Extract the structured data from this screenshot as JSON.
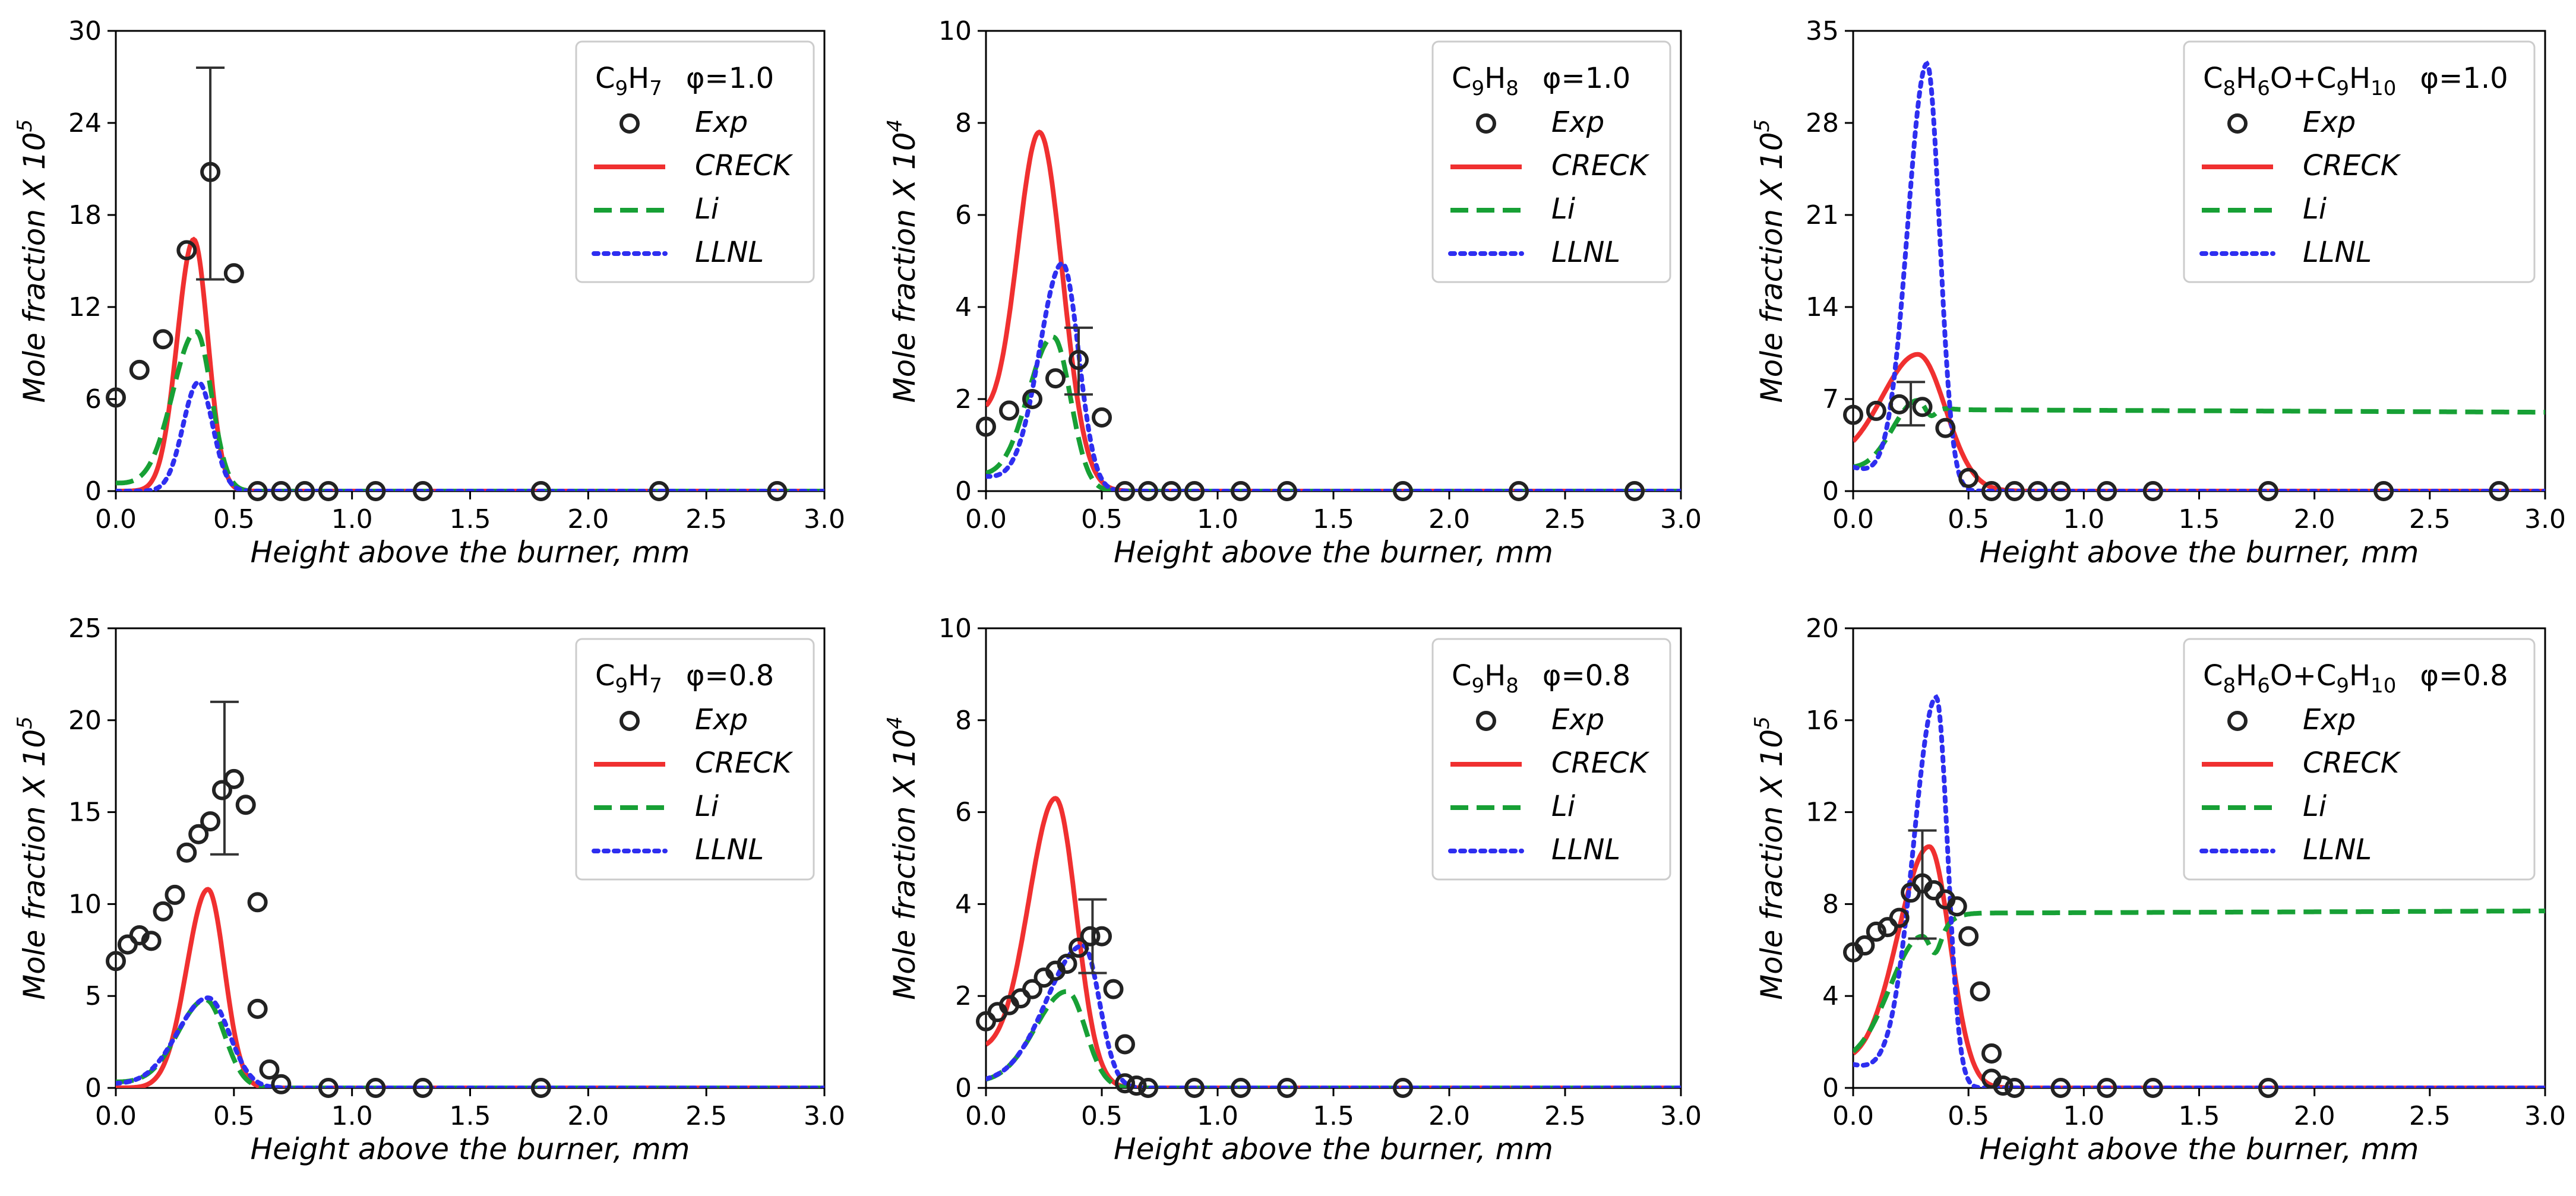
{
  "chart_data": [
    {
      "type": "line",
      "title": "C9H7 φ=1.0",
      "legend_title": {
        "base": [
          [
            "C",
            ""
          ],
          [
            "9",
            "sub"
          ],
          [
            "H",
            ""
          ],
          [
            "7",
            "sub"
          ]
        ],
        "phi": "φ=1.0"
      },
      "xlabel": "Height above the burner, mm",
      "ylabel": "Mole fraction X 10",
      "ylabel_exp": "5",
      "xlim": [
        0,
        3.0
      ],
      "ylim": [
        0,
        30
      ],
      "xticks": [
        "0.0",
        "0.5",
        "1.0",
        "1.5",
        "2.0",
        "2.5",
        "3.0"
      ],
      "yticks": [
        "0",
        "6",
        "12",
        "18",
        "24",
        "30"
      ],
      "legend_position": "top-right",
      "legend_labels": [
        "Exp",
        "CRECK",
        "Li",
        "LLNL"
      ],
      "exp": {
        "x": [
          0.0,
          0.1,
          0.2,
          0.3,
          0.4,
          0.5,
          0.6,
          0.7,
          0.8,
          0.9,
          1.1,
          1.3,
          1.8,
          2.3,
          2.8
        ],
        "y": [
          6.1,
          7.9,
          9.9,
          15.7,
          20.8,
          14.2,
          0,
          0,
          0,
          0,
          0,
          0,
          0,
          0,
          0
        ]
      },
      "errorbar": {
        "x": 0.4,
        "low": 13.8,
        "high": 27.6
      },
      "series": [
        {
          "name": "CRECK",
          "peak_x": 0.33,
          "peak": 16.4,
          "left_width": 0.07,
          "right_width": 0.06,
          "base0": 0.0
        },
        {
          "name": "Li",
          "peak_x": 0.34,
          "peak": 10.4,
          "left_width": 0.1,
          "right_width": 0.065,
          "base0": 0.5
        },
        {
          "name": "LLNL",
          "peak_x": 0.35,
          "peak": 7.1,
          "left_width": 0.065,
          "right_width": 0.06,
          "base0": 0.0
        }
      ]
    },
    {
      "type": "line",
      "title": "C9H8 φ=1.0",
      "legend_title": {
        "base": [
          [
            "C",
            ""
          ],
          [
            "9",
            "sub"
          ],
          [
            "H",
            ""
          ],
          [
            "8",
            "sub"
          ]
        ],
        "phi": "φ=1.0"
      },
      "xlabel": "Height above the burner, mm",
      "ylabel": "Mole fraction X 10",
      "ylabel_exp": "4",
      "xlim": [
        0,
        3.0
      ],
      "ylim": [
        0,
        10
      ],
      "xticks": [
        "0.0",
        "0.5",
        "1.0",
        "1.5",
        "2.0",
        "2.5",
        "3.0"
      ],
      "yticks": [
        "0",
        "2",
        "4",
        "6",
        "8",
        "10"
      ],
      "legend_position": "top-right",
      "legend_labels": [
        "Exp",
        "CRECK",
        "Li",
        "LLNL"
      ],
      "exp": {
        "x": [
          0.0,
          0.1,
          0.2,
          0.3,
          0.4,
          0.5,
          0.6,
          0.7,
          0.8,
          0.9,
          1.1,
          1.3,
          1.8,
          2.3,
          2.8
        ],
        "y": [
          1.4,
          1.75,
          2.0,
          2.45,
          2.85,
          1.6,
          0,
          0,
          0,
          0,
          0,
          0,
          0,
          0,
          0
        ]
      },
      "errorbar": {
        "x": 0.4,
        "low": 2.1,
        "high": 3.55
      },
      "series": [
        {
          "name": "CRECK",
          "peak_x": 0.23,
          "peak": 7.8,
          "left_width": 0.1,
          "right_width": 0.1,
          "base0": 1.4
        },
        {
          "name": "Li",
          "peak_x": 0.29,
          "peak": 3.35,
          "left_width": 0.11,
          "right_width": 0.075,
          "base0": 0.3
        },
        {
          "name": "LLNL",
          "peak_x": 0.33,
          "peak": 4.95,
          "left_width": 0.1,
          "right_width": 0.07,
          "base0": 0.3
        }
      ]
    },
    {
      "type": "line",
      "title": "C8H6O+C9H10 φ=1.0",
      "legend_title": {
        "base": [
          [
            "C",
            ""
          ],
          [
            "8",
            "sub"
          ],
          [
            "H",
            ""
          ],
          [
            "6",
            "sub"
          ],
          [
            "O+C",
            ""
          ],
          [
            "9",
            "sub"
          ],
          [
            "H",
            ""
          ],
          [
            "10",
            "sub"
          ]
        ],
        "phi": "φ=1.0"
      },
      "xlabel": "Height above the burner, mm",
      "ylabel": "Mole fraction X 10",
      "ylabel_exp": "5",
      "xlim": [
        0,
        3.0
      ],
      "ylim": [
        0,
        35
      ],
      "xticks": [
        "0.0",
        "0.5",
        "1.0",
        "1.5",
        "2.0",
        "2.5",
        "3.0"
      ],
      "yticks": [
        "0",
        "7",
        "14",
        "21",
        "28",
        "35"
      ],
      "legend_position": "top-right",
      "legend_labels": [
        "Exp",
        "CRECK",
        "Li",
        "LLNL"
      ],
      "exp": {
        "x": [
          0.0,
          0.1,
          0.2,
          0.3,
          0.4,
          0.5,
          0.6,
          0.7,
          0.8,
          0.9,
          1.1,
          1.3,
          1.8,
          2.3,
          2.8
        ],
        "y": [
          5.8,
          6.1,
          6.6,
          6.4,
          4.8,
          1.0,
          0,
          0,
          0,
          0,
          0,
          0,
          0,
          0,
          0
        ]
      },
      "errorbar": {
        "x": 0.25,
        "low": 5.0,
        "high": 8.3
      },
      "series": [
        {
          "name": "CRECK",
          "peak_x": 0.28,
          "peak": 10.4,
          "left_width": 0.17,
          "right_width": 0.12,
          "base0": 1.5
        },
        {
          "name": "Li",
          "peak_x": 0.28,
          "peak": 6.9,
          "left_width": 0.12,
          "right_width": 0.07,
          "base0": 1.5,
          "plateau_start": 6.2,
          "plateau_end": 6.0
        },
        {
          "name": "LLNL",
          "peak_x": 0.32,
          "peak": 32.5,
          "left_width": 0.085,
          "right_width": 0.055,
          "base0": 1.8
        }
      ]
    },
    {
      "type": "line",
      "title": "C9H7 φ=0.8",
      "legend_title": {
        "base": [
          [
            "C",
            ""
          ],
          [
            "9",
            "sub"
          ],
          [
            "H",
            ""
          ],
          [
            "7",
            "sub"
          ]
        ],
        "phi": "φ=0.8"
      },
      "xlabel": "Height above the burner, mm",
      "ylabel": "Mole fraction X 10",
      "ylabel_exp": "5",
      "xlim": [
        0,
        3.0
      ],
      "ylim": [
        0,
        25
      ],
      "xticks": [
        "0.0",
        "0.5",
        "1.0",
        "1.5",
        "2.0",
        "2.5",
        "3.0"
      ],
      "yticks": [
        "0",
        "5",
        "10",
        "15",
        "20",
        "25"
      ],
      "legend_position": "top-right",
      "legend_labels": [
        "Exp",
        "CRECK",
        "Li",
        "LLNL"
      ],
      "exp": {
        "x": [
          0.0,
          0.05,
          0.1,
          0.15,
          0.2,
          0.25,
          0.3,
          0.35,
          0.4,
          0.45,
          0.5,
          0.55,
          0.6,
          0.6,
          0.65,
          0.7,
          0.9,
          1.1,
          1.3,
          1.8
        ],
        "y": [
          6.9,
          7.8,
          8.3,
          8.0,
          9.6,
          10.5,
          12.8,
          13.8,
          14.5,
          16.2,
          16.8,
          15.4,
          10.1,
          4.3,
          1.0,
          0.2,
          0,
          0,
          0,
          0
        ]
      },
      "errorbar": {
        "x": 0.46,
        "low": 12.7,
        "high": 21.0
      },
      "series": [
        {
          "name": "CRECK",
          "peak_x": 0.39,
          "peak": 10.8,
          "left_width": 0.09,
          "right_width": 0.07,
          "base0": 0.0
        },
        {
          "name": "Li",
          "peak_x": 0.38,
          "peak": 4.8,
          "left_width": 0.12,
          "right_width": 0.08,
          "base0": 0.3
        },
        {
          "name": "LLNL",
          "peak_x": 0.39,
          "peak": 4.9,
          "left_width": 0.13,
          "right_width": 0.09,
          "base0": 0.2
        }
      ]
    },
    {
      "type": "line",
      "title": "C9H8 φ=0.8",
      "legend_title": {
        "base": [
          [
            "C",
            ""
          ],
          [
            "9",
            "sub"
          ],
          [
            "H",
            ""
          ],
          [
            "8",
            "sub"
          ]
        ],
        "phi": "φ=0.8"
      },
      "xlabel": "Height above the burner, mm",
      "ylabel": "Mole fraction X 10",
      "ylabel_exp": "4",
      "xlim": [
        0,
        3.0
      ],
      "ylim": [
        0,
        10
      ],
      "xticks": [
        "0.0",
        "0.5",
        "1.0",
        "1.5",
        "2.0",
        "2.5",
        "3.0"
      ],
      "yticks": [
        "0",
        "2",
        "4",
        "6",
        "8",
        "10"
      ],
      "legend_position": "top-right",
      "legend_labels": [
        "Exp",
        "CRECK",
        "Li",
        "LLNL"
      ],
      "exp": {
        "x": [
          0.0,
          0.05,
          0.1,
          0.15,
          0.2,
          0.25,
          0.3,
          0.35,
          0.4,
          0.45,
          0.5,
          0.55,
          0.6,
          0.6,
          0.65,
          0.7,
          0.9,
          1.1,
          1.3,
          1.8
        ],
        "y": [
          1.45,
          1.65,
          1.8,
          1.95,
          2.15,
          2.4,
          2.55,
          2.7,
          3.05,
          3.3,
          3.3,
          2.15,
          0.95,
          0.1,
          0.05,
          0,
          0,
          0,
          0,
          0
        ]
      },
      "errorbar": {
        "x": 0.46,
        "low": 2.5,
        "high": 4.1
      },
      "series": [
        {
          "name": "CRECK",
          "peak_x": 0.3,
          "peak": 6.3,
          "left_width": 0.12,
          "right_width": 0.09,
          "base0": 0.7
        },
        {
          "name": "Li",
          "peak_x": 0.35,
          "peak": 2.1,
          "left_width": 0.14,
          "right_width": 0.08,
          "base0": 0.1
        },
        {
          "name": "LLNL",
          "peak_x": 0.42,
          "peak": 3.1,
          "left_width": 0.16,
          "right_width": 0.07,
          "base0": 0.1
        }
      ]
    },
    {
      "type": "line",
      "title": "C8H6O+C9H10 φ=0.8",
      "legend_title": {
        "base": [
          [
            "C",
            ""
          ],
          [
            "8",
            "sub"
          ],
          [
            "H",
            ""
          ],
          [
            "6",
            "sub"
          ],
          [
            "O+C",
            ""
          ],
          [
            "9",
            "sub"
          ],
          [
            "H",
            ""
          ],
          [
            "10",
            "sub"
          ]
        ],
        "phi": "φ=0.8"
      },
      "xlabel": "Height above the burner, mm",
      "ylabel": "Mole fraction X 10",
      "ylabel_exp": "5",
      "xlim": [
        0,
        3.0
      ],
      "ylim": [
        0,
        20
      ],
      "xticks": [
        "0.0",
        "0.5",
        "1.0",
        "1.5",
        "2.0",
        "2.5",
        "3.0"
      ],
      "yticks": [
        "0",
        "4",
        "8",
        "12",
        "16",
        "20"
      ],
      "legend_position": "top-right",
      "legend_labels": [
        "Exp",
        "CRECK",
        "Li",
        "LLNL"
      ],
      "exp": {
        "x": [
          0.0,
          0.05,
          0.1,
          0.15,
          0.2,
          0.25,
          0.3,
          0.35,
          0.4,
          0.45,
          0.5,
          0.55,
          0.6,
          0.6,
          0.65,
          0.7,
          0.9,
          1.1,
          1.3,
          1.8
        ],
        "y": [
          5.9,
          6.2,
          6.8,
          7.0,
          7.4,
          8.5,
          8.9,
          8.6,
          8.2,
          7.9,
          6.6,
          4.2,
          1.5,
          0.4,
          0.1,
          0,
          0,
          0,
          0,
          0
        ]
      },
      "errorbar": {
        "x": 0.3,
        "low": 6.5,
        "high": 11.2
      },
      "series": [
        {
          "name": "CRECK",
          "peak_x": 0.33,
          "peak": 10.5,
          "left_width": 0.14,
          "right_width": 0.09,
          "base0": 0.9
        },
        {
          "name": "Li",
          "peak_x": 0.3,
          "peak": 6.6,
          "left_width": 0.15,
          "right_width": 0.08,
          "base0": 0.8,
          "plateau_start": 7.6,
          "plateau_end": 7.7
        },
        {
          "name": "LLNL",
          "peak_x": 0.36,
          "peak": 17.0,
          "left_width": 0.1,
          "right_width": 0.05,
          "base0": 1.0
        }
      ]
    }
  ],
  "colors": {
    "CRECK": "#f03030",
    "Li": "#17a035",
    "LLNL": "#2e2ef0",
    "exp": "#222222",
    "axis": "#000000",
    "errorbar": "#333333",
    "legend_border": "#cccccc"
  },
  "legend_styles": {
    "Exp": "circle-marker",
    "CRECK": "solid-line",
    "Li": "dashed-line",
    "LLNL": "dotted-line"
  }
}
